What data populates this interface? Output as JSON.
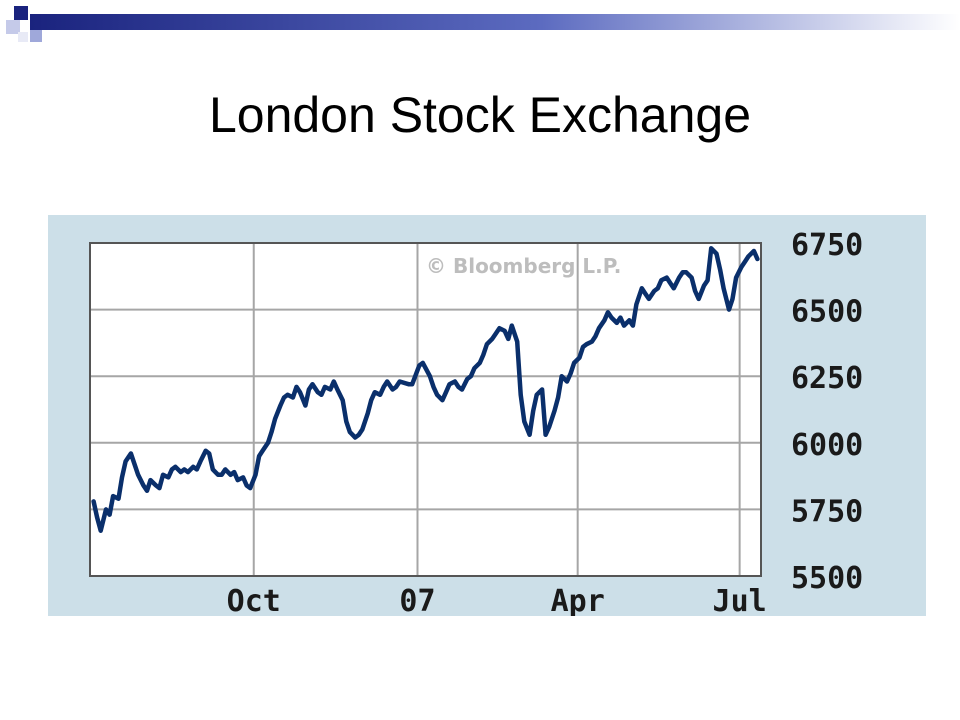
{
  "slide": {
    "title": "London Stock Exchange"
  },
  "colors": {
    "panel_background": "#ccdfe8",
    "plot_background": "#ffffff",
    "grid": "#a6a6a6",
    "line": "#0a2f6b",
    "watermark": "#bdbdbd",
    "accent_blocks": [
      "#1a237e",
      "#3949ab",
      "#9fa8da"
    ]
  },
  "chart_data": {
    "type": "line",
    "title": "",
    "xlabel": "",
    "ylabel": "",
    "watermark": "© Bloomberg L.P.",
    "ylim": [
      5500,
      6750
    ],
    "yticks": [
      6750,
      6500,
      6250,
      6000,
      5750,
      5500
    ],
    "y_axis_side": "right",
    "grid": true,
    "xlim": [
      "2006-07-01",
      "2007-07-13"
    ],
    "xticks": [
      {
        "label": "Oct",
        "date": "2006-10-01"
      },
      {
        "label": "07",
        "date": "2007-01-01"
      },
      {
        "label": "Apr",
        "date": "2007-04-01"
      },
      {
        "label": "Jul",
        "date": "2007-07-01"
      }
    ],
    "series": [
      {
        "name": "",
        "points": [
          [
            "2006-07-03",
            5780
          ],
          [
            "2006-07-05",
            5720
          ],
          [
            "2006-07-07",
            5670
          ],
          [
            "2006-07-10",
            5750
          ],
          [
            "2006-07-12",
            5730
          ],
          [
            "2006-07-14",
            5800
          ],
          [
            "2006-07-17",
            5790
          ],
          [
            "2006-07-19",
            5870
          ],
          [
            "2006-07-21",
            5930
          ],
          [
            "2006-07-24",
            5960
          ],
          [
            "2006-07-26",
            5920
          ],
          [
            "2006-07-28",
            5880
          ],
          [
            "2006-07-31",
            5840
          ],
          [
            "2006-08-02",
            5820
          ],
          [
            "2006-08-04",
            5860
          ],
          [
            "2006-08-07",
            5840
          ],
          [
            "2006-08-09",
            5830
          ],
          [
            "2006-08-11",
            5880
          ],
          [
            "2006-08-14",
            5870
          ],
          [
            "2006-08-16",
            5900
          ],
          [
            "2006-08-18",
            5910
          ],
          [
            "2006-08-21",
            5890
          ],
          [
            "2006-08-23",
            5900
          ],
          [
            "2006-08-25",
            5890
          ],
          [
            "2006-08-28",
            5910
          ],
          [
            "2006-08-30",
            5900
          ],
          [
            "2006-09-01",
            5930
          ],
          [
            "2006-09-04",
            5970
          ],
          [
            "2006-09-06",
            5960
          ],
          [
            "2006-09-08",
            5900
          ],
          [
            "2006-09-11",
            5880
          ],
          [
            "2006-09-13",
            5880
          ],
          [
            "2006-09-15",
            5900
          ],
          [
            "2006-09-18",
            5880
          ],
          [
            "2006-09-20",
            5890
          ],
          [
            "2006-09-22",
            5860
          ],
          [
            "2006-09-25",
            5870
          ],
          [
            "2006-09-27",
            5840
          ],
          [
            "2006-09-29",
            5830
          ],
          [
            "2006-10-02",
            5880
          ],
          [
            "2006-10-04",
            5950
          ],
          [
            "2006-10-06",
            5970
          ],
          [
            "2006-10-09",
            6000
          ],
          [
            "2006-10-11",
            6040
          ],
          [
            "2006-10-13",
            6090
          ],
          [
            "2006-10-16",
            6140
          ],
          [
            "2006-10-18",
            6170
          ],
          [
            "2006-10-20",
            6180
          ],
          [
            "2006-10-23",
            6170
          ],
          [
            "2006-10-25",
            6210
          ],
          [
            "2006-10-27",
            6190
          ],
          [
            "2006-10-30",
            6140
          ],
          [
            "2006-11-01",
            6200
          ],
          [
            "2006-11-03",
            6220
          ],
          [
            "2006-11-06",
            6190
          ],
          [
            "2006-11-08",
            6180
          ],
          [
            "2006-11-10",
            6210
          ],
          [
            "2006-11-13",
            6200
          ],
          [
            "2006-11-15",
            6230
          ],
          [
            "2006-11-17",
            6200
          ],
          [
            "2006-11-20",
            6160
          ],
          [
            "2006-11-22",
            6080
          ],
          [
            "2006-11-24",
            6040
          ],
          [
            "2006-11-27",
            6020
          ],
          [
            "2006-11-29",
            6030
          ],
          [
            "2006-12-01",
            6050
          ],
          [
            "2006-12-04",
            6110
          ],
          [
            "2006-12-06",
            6160
          ],
          [
            "2006-12-08",
            6190
          ],
          [
            "2006-12-11",
            6180
          ],
          [
            "2006-12-13",
            6210
          ],
          [
            "2006-12-15",
            6230
          ],
          [
            "2006-12-18",
            6200
          ],
          [
            "2006-12-20",
            6210
          ],
          [
            "2006-12-22",
            6230
          ],
          [
            "2006-12-27",
            6220
          ],
          [
            "2006-12-29",
            6220
          ],
          [
            "2007-01-02",
            6290
          ],
          [
            "2007-01-04",
            6300
          ],
          [
            "2007-01-08",
            6250
          ],
          [
            "2007-01-10",
            6210
          ],
          [
            "2007-01-12",
            6180
          ],
          [
            "2007-01-15",
            6160
          ],
          [
            "2007-01-17",
            6190
          ],
          [
            "2007-01-19",
            6220
          ],
          [
            "2007-01-22",
            6230
          ],
          [
            "2007-01-24",
            6210
          ],
          [
            "2007-01-26",
            6200
          ],
          [
            "2007-01-29",
            6240
          ],
          [
            "2007-01-31",
            6250
          ],
          [
            "2007-02-02",
            6280
          ],
          [
            "2007-02-05",
            6300
          ],
          [
            "2007-02-07",
            6330
          ],
          [
            "2007-02-09",
            6370
          ],
          [
            "2007-02-12",
            6390
          ],
          [
            "2007-02-14",
            6410
          ],
          [
            "2007-02-16",
            6430
          ],
          [
            "2007-02-19",
            6420
          ],
          [
            "2007-02-21",
            6390
          ],
          [
            "2007-02-23",
            6440
          ],
          [
            "2007-02-26",
            6380
          ],
          [
            "2007-02-28",
            6180
          ],
          [
            "2007-03-02",
            6080
          ],
          [
            "2007-03-05",
            6030
          ],
          [
            "2007-03-07",
            6120
          ],
          [
            "2007-03-09",
            6180
          ],
          [
            "2007-03-12",
            6200
          ],
          [
            "2007-03-14",
            6030
          ],
          [
            "2007-03-16",
            6060
          ],
          [
            "2007-03-19",
            6120
          ],
          [
            "2007-03-21",
            6170
          ],
          [
            "2007-03-23",
            6250
          ],
          [
            "2007-03-26",
            6230
          ],
          [
            "2007-03-28",
            6260
          ],
          [
            "2007-03-30",
            6300
          ],
          [
            "2007-04-02",
            6320
          ],
          [
            "2007-04-04",
            6360
          ],
          [
            "2007-04-06",
            6370
          ],
          [
            "2007-04-09",
            6380
          ],
          [
            "2007-04-11",
            6400
          ],
          [
            "2007-04-13",
            6430
          ],
          [
            "2007-04-16",
            6460
          ],
          [
            "2007-04-18",
            6490
          ],
          [
            "2007-04-20",
            6470
          ],
          [
            "2007-04-23",
            6450
          ],
          [
            "2007-04-25",
            6470
          ],
          [
            "2007-04-27",
            6440
          ],
          [
            "2007-04-30",
            6460
          ],
          [
            "2007-05-02",
            6440
          ],
          [
            "2007-05-04",
            6520
          ],
          [
            "2007-05-07",
            6580
          ],
          [
            "2007-05-09",
            6560
          ],
          [
            "2007-05-11",
            6540
          ],
          [
            "2007-05-14",
            6570
          ],
          [
            "2007-05-16",
            6580
          ],
          [
            "2007-05-18",
            6610
          ],
          [
            "2007-05-21",
            6620
          ],
          [
            "2007-05-23",
            6600
          ],
          [
            "2007-05-25",
            6580
          ],
          [
            "2007-05-28",
            6620
          ],
          [
            "2007-05-30",
            6640
          ],
          [
            "2007-06-01",
            6640
          ],
          [
            "2007-06-04",
            6620
          ],
          [
            "2007-06-06",
            6570
          ],
          [
            "2007-06-08",
            6540
          ],
          [
            "2007-06-11",
            6590
          ],
          [
            "2007-06-13",
            6610
          ],
          [
            "2007-06-15",
            6730
          ],
          [
            "2007-06-18",
            6710
          ],
          [
            "2007-06-20",
            6650
          ],
          [
            "2007-06-22",
            6580
          ],
          [
            "2007-06-25",
            6500
          ],
          [
            "2007-06-27",
            6540
          ],
          [
            "2007-06-29",
            6620
          ],
          [
            "2007-07-02",
            6660
          ],
          [
            "2007-07-04",
            6680
          ],
          [
            "2007-07-06",
            6700
          ],
          [
            "2007-07-09",
            6720
          ],
          [
            "2007-07-11",
            6690
          ]
        ]
      }
    ]
  }
}
